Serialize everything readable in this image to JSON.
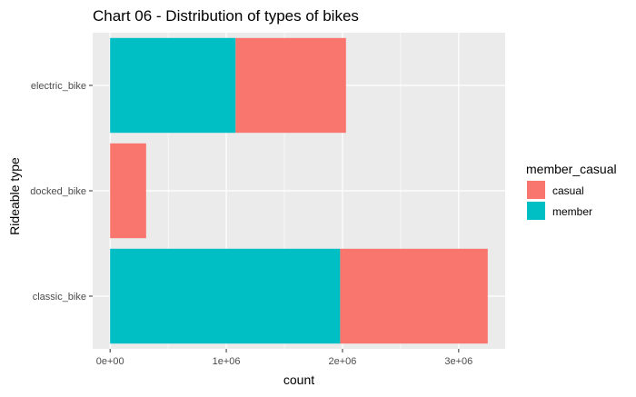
{
  "chart_data": {
    "type": "bar",
    "orientation": "horizontal",
    "stacked": true,
    "title": "Chart 06 - Distribution of types of bikes",
    "xlabel": "count",
    "ylabel": "Rideable type",
    "categories": [
      "classic_bike",
      "docked_bike",
      "electric_bike"
    ],
    "series": [
      {
        "name": "casual",
        "color": "#F8766D",
        "values": [
          1270000,
          310000,
          950000
        ]
      },
      {
        "name": "member",
        "color": "#00BFC4",
        "values": [
          1980000,
          0,
          1080000
        ]
      }
    ],
    "stack_order_from_axis": [
      "member",
      "casual"
    ],
    "xlim": [
      -150000,
      3400000
    ],
    "xticks": [
      0,
      1000000,
      2000000,
      3000000
    ],
    "xtick_labels": [
      "0e+00",
      "1e+06",
      "2e+06",
      "3e+06"
    ],
    "legend": {
      "title": "member_casual",
      "position": "right",
      "entries": [
        {
          "label": "casual",
          "color": "#F8766D"
        },
        {
          "label": "member",
          "color": "#00BFC4"
        }
      ]
    },
    "panel_background": "#EBEBEB",
    "gridline_color": "#FFFFFF",
    "grid": true
  }
}
